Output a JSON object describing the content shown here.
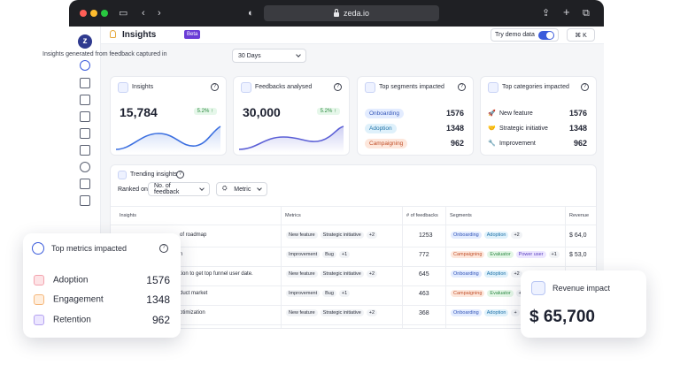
{
  "browser": {
    "url": "zeda.io"
  },
  "header": {
    "title": "Insights",
    "badge": "Beta",
    "demo_label": "Try demo data",
    "shortcut": "⌘ K"
  },
  "filter": {
    "caption": "Insights generated from feedback captured in",
    "period": "30 Days"
  },
  "cards": {
    "insights": {
      "title": "Insights",
      "value": "15,784",
      "delta": "5.2% ↑"
    },
    "feedbacks": {
      "title": "Feedbacks analysed",
      "value": "30,000",
      "delta": "5.2% ↑"
    },
    "segments": {
      "title": "Top segments impacted",
      "items": [
        {
          "label": "Onboarding",
          "value": "1576"
        },
        {
          "label": "Adoption",
          "value": "1348"
        },
        {
          "label": "Campaigning",
          "value": "962"
        }
      ]
    },
    "categories": {
      "title": "Top categories impacted",
      "items": [
        {
          "label": "New feature",
          "value": "1576"
        },
        {
          "label": "Strategic initiative",
          "value": "1348"
        },
        {
          "label": "Improvement",
          "value": "962"
        }
      ]
    }
  },
  "trending": {
    "title": "Trending insights",
    "ranked_label": "Ranked on",
    "ranked_value": "No. of feedback",
    "metric_label": "Metric",
    "columns": [
      "Insights",
      "Metrics",
      "# of feedbacks",
      "Segments",
      "Revenue"
    ],
    "rows": [
      {
        "insight": "of roadmap",
        "m1": "New feature",
        "m2": "Strategic initiative",
        "more": "+2",
        "count": "1253",
        "s1": "Onboarding",
        "s2": "Adoption",
        "s3": "",
        "smore": "+2",
        "revenue": "$ 64,0"
      },
      {
        "insight": "n",
        "m1": "Improvement",
        "m2": "Bug",
        "more": "+1",
        "count": "772",
        "s1": "Campaigning",
        "s2": "Evaluator",
        "s3": "Power user",
        "smore": "+1",
        "revenue": "$ 53,0"
      },
      {
        "insight": "tion to get top funnel user date.",
        "m1": "New feature",
        "m2": "Strategic initiative",
        "more": "+2",
        "count": "645",
        "s1": "Onboarding",
        "s2": "Adoption",
        "s3": "",
        "smore": "+2",
        "revenue": ""
      },
      {
        "insight": "duct market",
        "m1": "Improvement",
        "m2": "Bug",
        "more": "+1",
        "count": "463",
        "s1": "Campaigning",
        "s2": "Evaluator",
        "s3": "",
        "smore": "+2",
        "revenue": ""
      },
      {
        "insight": "ptimization",
        "m1": "New feature",
        "m2": "Strategic initiative",
        "more": "+2",
        "count": "368",
        "s1": "Onboarding",
        "s2": "Adoption",
        "s3": "",
        "smore": "+",
        "revenue": ""
      }
    ]
  },
  "top_metrics": {
    "title": "Top metrics impacted",
    "items": [
      {
        "label": "Adoption",
        "value": "1576"
      },
      {
        "label": "Engagement",
        "value": "1348"
      },
      {
        "label": "Retention",
        "value": "962"
      }
    ]
  },
  "revenue_card": {
    "title": "Revenue impact",
    "value": "$ 65,700"
  }
}
